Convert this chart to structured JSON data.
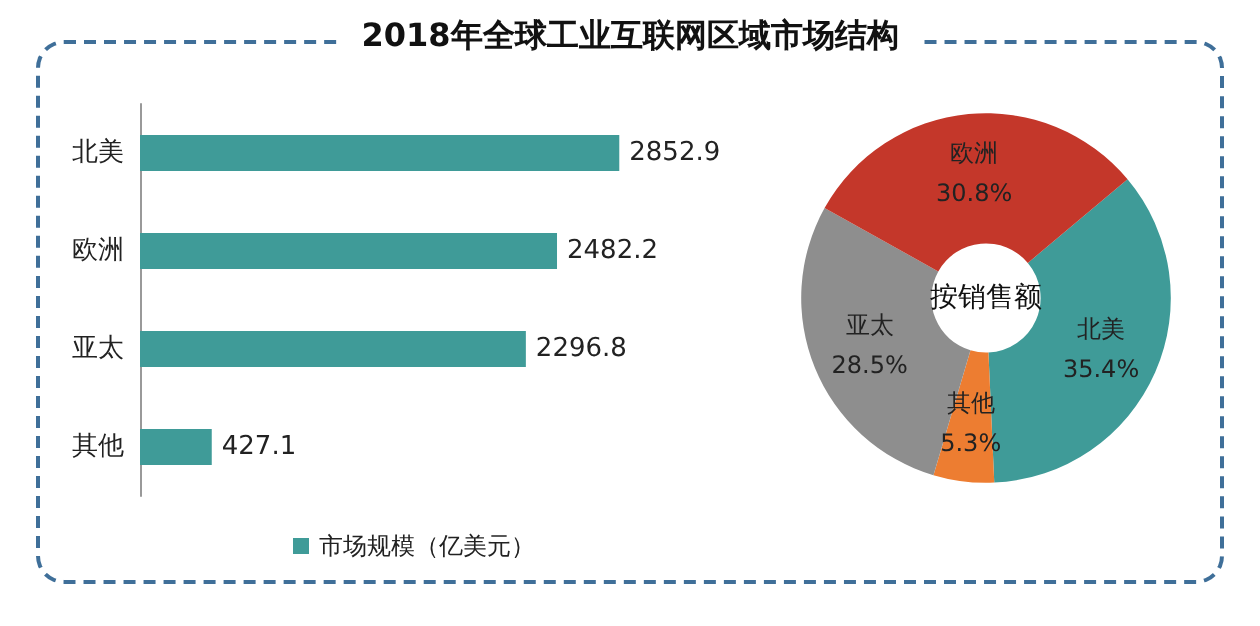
{
  "chart_data": [
    {
      "type": "bar",
      "title": "2018年全球工业互联网区域市场结构",
      "orientation": "horizontal",
      "categories": [
        "北美",
        "欧洲",
        "亚太",
        "其他"
      ],
      "series": [
        {
          "name": "市场规模（亿美元）",
          "color": "#3f9b98",
          "values": [
            2852.9,
            2482.2,
            2296.8,
            427.1
          ]
        }
      ],
      "data_labels": true,
      "legend": "bottom"
    },
    {
      "type": "donut",
      "title": "按销售额",
      "categories": [
        "北美",
        "其他",
        "亚太",
        "欧洲"
      ],
      "values": [
        35.4,
        5.3,
        28.5,
        30.8
      ],
      "colors": [
        "#3f9b98",
        "#ed7d31",
        "#8e8e8e",
        "#c4372a"
      ],
      "value_labels": [
        "35.4%",
        "5.3%",
        "28.5%",
        "30.8%"
      ]
    }
  ]
}
